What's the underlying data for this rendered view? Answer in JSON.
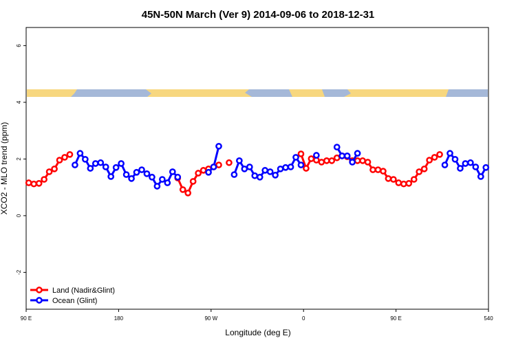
{
  "chart_data": {
    "type": "line",
    "title": "45N-50N March (Ver 9)   2014-09-06 to 2018-12-31",
    "x_label": "Longitude (deg E)",
    "y_label": "XCO2 - MLO trend (ppm)",
    "x": [
      92.5,
      97.5,
      102.5,
      107.5,
      112.5,
      117.5,
      122.5,
      127.5,
      132.5,
      137.5,
      142.5,
      147.5,
      152.5,
      157.5,
      162.5,
      167.5,
      172.5,
      177.5,
      182.5,
      187.5,
      192.5,
      197.5,
      202.5,
      207.5,
      212.5,
      217.5,
      222.5,
      227.5,
      232.5,
      237.5,
      242.5,
      247.5,
      252.5,
      257.5,
      262.5,
      267.5,
      272.5,
      277.5,
      282.5,
      287.5,
      292.5,
      297.5,
      302.5,
      307.5,
      312.5,
      317.5,
      322.5,
      327.5,
      332.5,
      337.5,
      342.5,
      347.5,
      352.5,
      357.5,
      362.5,
      367.5,
      372.5,
      377.5,
      382.5,
      387.5,
      392.5,
      397.5,
      402.5,
      407.5,
      412.5,
      417.5,
      422.5,
      427.5,
      432.5,
      437.5,
      442.5,
      447.5,
      452.5,
      457.5,
      462.5,
      467.5,
      472.5,
      477.5,
      482.5,
      487.5,
      492.5,
      497.5,
      502.5,
      507.5,
      512.5,
      517.5,
      522.5,
      527.5,
      532.5,
      537.5
    ],
    "series": [
      {
        "name": "Land (Nadir&Glint)",
        "color": "#ff0000",
        "values": [
          1.16,
          1.12,
          1.14,
          1.28,
          1.55,
          1.65,
          1.96,
          2.06,
          2.16,
          null,
          null,
          null,
          null,
          null,
          null,
          null,
          null,
          null,
          null,
          null,
          null,
          null,
          null,
          null,
          null,
          null,
          null,
          null,
          null,
          1.33,
          0.92,
          0.8,
          1.21,
          1.5,
          1.6,
          1.65,
          1.72,
          1.79,
          null,
          1.87,
          null,
          null,
          null,
          null,
          null,
          null,
          null,
          null,
          null,
          null,
          null,
          null,
          null,
          2.18,
          1.67,
          2.01,
          1.96,
          1.89,
          1.94,
          1.94,
          2.04,
          2.11,
          2.08,
          1.94,
          1.94,
          1.94,
          1.89,
          1.62,
          1.62,
          1.57,
          1.31,
          1.28,
          1.16,
          1.12,
          1.14,
          1.28,
          1.55,
          1.65,
          1.96,
          2.06,
          2.16,
          null,
          null,
          null,
          null,
          null,
          null,
          null,
          null,
          null
        ]
      },
      {
        "name": "Ocean (Glint)",
        "color": "#0000ff",
        "values": [
          null,
          null,
          null,
          null,
          null,
          null,
          null,
          null,
          null,
          1.79,
          2.2,
          1.99,
          1.67,
          1.84,
          1.87,
          1.72,
          1.38,
          1.7,
          1.84,
          1.45,
          1.31,
          1.53,
          1.62,
          1.48,
          1.36,
          1.04,
          1.28,
          1.16,
          1.55,
          1.36,
          null,
          null,
          null,
          null,
          null,
          1.53,
          1.72,
          2.45,
          null,
          null,
          1.45,
          1.94,
          1.65,
          1.72,
          1.41,
          1.36,
          1.6,
          1.55,
          1.43,
          1.65,
          1.7,
          1.72,
          2.06,
          1.79,
          null,
          null,
          2.13,
          null,
          null,
          null,
          2.42,
          2.11,
          2.11,
          1.89,
          2.2,
          null,
          null,
          null,
          null,
          null,
          null,
          null,
          null,
          null,
          null,
          null,
          null,
          null,
          null,
          null,
          null,
          1.79,
          2.2,
          1.99,
          1.67,
          1.84,
          1.87,
          1.72,
          1.38,
          1.7
        ]
      }
    ],
    "xlim": [
      90,
      540
    ],
    "xticks": [
      {
        "value": 90,
        "label": "90 E"
      },
      180,
      {
        "value": 270,
        "label": "90 W"
      },
      {
        "value": 360,
        "label": "0"
      },
      {
        "value": 450,
        "label": "90 E"
      },
      540
    ],
    "ylim": [
      -3.3,
      6.64
    ],
    "yticks": [
      -2,
      0,
      2,
      4,
      6
    ],
    "legend": "bottomleft"
  }
}
